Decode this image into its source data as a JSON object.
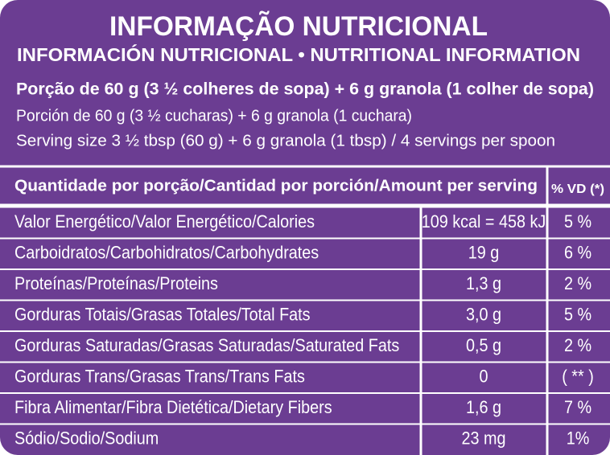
{
  "header": {
    "title": "INFORMAÇÃO NUTRICIONAL",
    "subtitle": "INFORMACIÓN NUTRICIONAL • NUTRITIONAL INFORMATION",
    "serving_pt": "Porção de 60 g (3 ½ colheres de sopa) + 6 g granola (1 colher de sopa)",
    "serving_es": "Porción de 60 g (3 ½ cucharas) + 6 g granola (1 cuchara)",
    "serving_en": "Serving size 3 ½ tbsp  (60 g) + 6 g granola (1 tbsp) / 4 servings per spoon"
  },
  "table": {
    "header": [
      "Quantidade por porção/Cantidad por porción/Amount per serving",
      "% VD (*)"
    ],
    "rows": [
      [
        "Valor Energético/Valor Energético/Calories",
        "109 kcal = 458 kJ",
        "5 %"
      ],
      [
        "Carboidratos/Carbohidratos/Carbohydrates",
        "19 g",
        "6 %"
      ],
      [
        "Proteínas/Proteínas/Proteins",
        "1,3 g",
        "2 %"
      ],
      [
        "Gorduras Totais/Grasas Totales/Total Fats",
        "3,0 g",
        "5 %"
      ],
      [
        "Gorduras Saturadas/Grasas Saturadas/Saturated Fats",
        "0,5 g",
        "2 %"
      ],
      [
        "Gorduras Trans/Grasas Trans/Trans Fats",
        "0",
        "( ** )"
      ],
      [
        "Fibra Alimentar/Fibra Dietética/Dietary Fibers",
        "1,6 g",
        "7 %"
      ],
      [
        "Sódio/Sodio/Sodium",
        "23 mg",
        "1%"
      ]
    ]
  }
}
